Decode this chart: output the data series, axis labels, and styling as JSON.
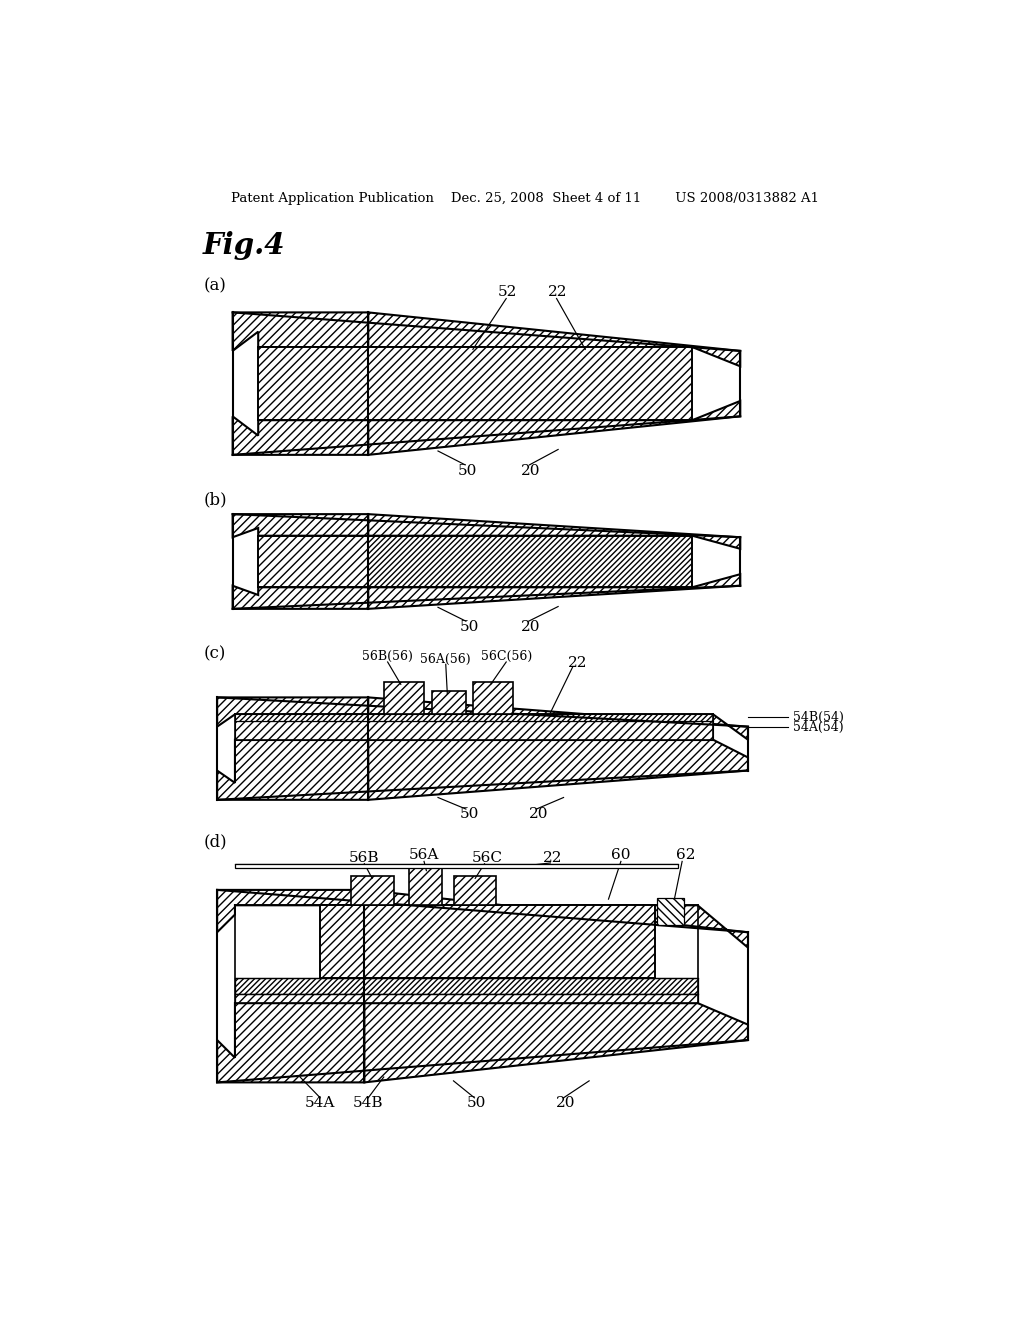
{
  "bg_color": "#ffffff",
  "header": "Patent Application Publication    Dec. 25, 2008  Sheet 4 of 11        US 2008/0313882 A1",
  "fig_label": "Fig.4",
  "panels": [
    "(a)",
    "(b)",
    "(c)",
    "(d)"
  ]
}
